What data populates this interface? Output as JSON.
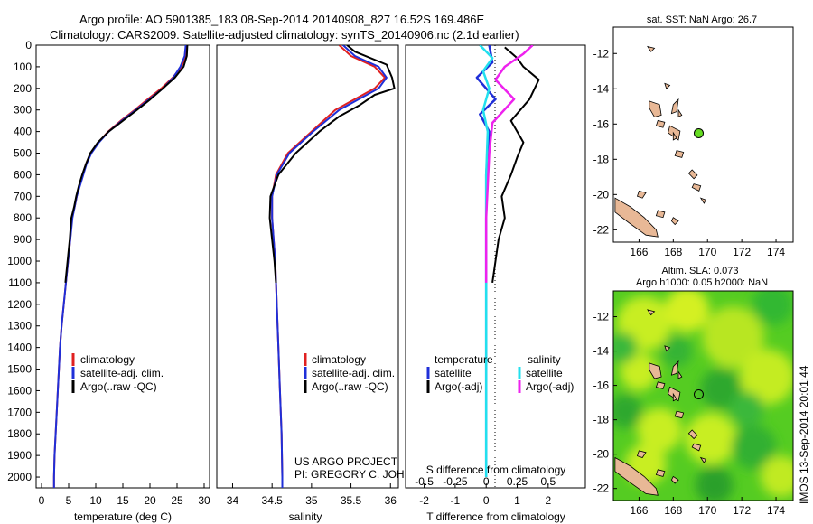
{
  "header": {
    "line1": "Argo profile: AO 5901385_183 08-Sep-2014 20140908_827 16.52S 169.486E",
    "line2": "Climatology: CARS2009. Satellite-adjusted climatology: synTS_20140906.nc (2.1d earlier)"
  },
  "credit": {
    "line1": "US ARGO PROJECT",
    "line2": "PI: GREGORY C. JOHNSON"
  },
  "timestamp": "IMOS 13-Sep-2014 20:01:44",
  "colors": {
    "climatology": "#e02020",
    "satellite": "#1f2fd8",
    "argo": "#000000",
    "sal_satellite": "#22e0ee",
    "sal_argo": "#ee22ee",
    "land": "#e8b896",
    "float": "#66dd22"
  },
  "chart_data": [
    {
      "type": "line",
      "id": "temperature",
      "xlabel": "temperature (deg C)",
      "xlim": [
        -1,
        31
      ],
      "ylim": [
        2050,
        0
      ],
      "xticks": [
        0,
        5,
        10,
        15,
        20,
        25,
        30
      ],
      "yticks": [
        0,
        100,
        200,
        300,
        400,
        500,
        600,
        700,
        800,
        900,
        1000,
        1100,
        1200,
        1300,
        1400,
        1500,
        1600,
        1700,
        1800,
        1900,
        2000
      ],
      "legend": [
        "climatology",
        "satellite-adj. clim.",
        "Argo(..raw -QC)"
      ],
      "series": [
        {
          "name": "climatology",
          "points": [
            [
              26.8,
              0
            ],
            [
              26.6,
              50
            ],
            [
              25.8,
              100
            ],
            [
              24.2,
              150
            ],
            [
              22.1,
              200
            ],
            [
              19.6,
              250
            ],
            [
              17.2,
              300
            ],
            [
              14.6,
              350
            ],
            [
              12.3,
              400
            ],
            [
              10.5,
              450
            ],
            [
              9.1,
              500
            ],
            [
              8.2,
              550
            ],
            [
              7.6,
              600
            ],
            [
              7.0,
              650
            ],
            [
              6.5,
              700
            ],
            [
              6.1,
              750
            ],
            [
              5.6,
              800
            ],
            [
              5.3,
              900
            ],
            [
              4.9,
              1000
            ],
            [
              4.5,
              1100
            ],
            [
              4.1,
              1200
            ],
            [
              3.7,
              1300
            ],
            [
              3.4,
              1400
            ],
            [
              3.2,
              1500
            ],
            [
              3.0,
              1600
            ],
            [
              2.8,
              1700
            ],
            [
              2.6,
              1800
            ],
            [
              2.4,
              1900
            ],
            [
              2.3,
              2000
            ],
            [
              2.3,
              2050
            ]
          ]
        },
        {
          "name": "satellite-adj. clim.",
          "points": [
            [
              26.6,
              0
            ],
            [
              26.4,
              50
            ],
            [
              25.6,
              100
            ],
            [
              24.3,
              150
            ],
            [
              22.4,
              200
            ],
            [
              19.9,
              250
            ],
            [
              17.4,
              300
            ],
            [
              14.8,
              350
            ],
            [
              12.4,
              400
            ],
            [
              10.6,
              450
            ],
            [
              9.2,
              500
            ],
            [
              8.3,
              550
            ],
            [
              7.7,
              600
            ],
            [
              7.1,
              650
            ],
            [
              6.5,
              700
            ],
            [
              6.1,
              750
            ],
            [
              5.7,
              800
            ],
            [
              5.3,
              900
            ],
            [
              4.9,
              1000
            ],
            [
              4.5,
              1100
            ],
            [
              4.1,
              1200
            ],
            [
              3.7,
              1300
            ],
            [
              3.4,
              1400
            ],
            [
              3.2,
              1500
            ],
            [
              3.0,
              1600
            ],
            [
              2.8,
              1700
            ],
            [
              2.6,
              1800
            ],
            [
              2.4,
              1900
            ],
            [
              2.3,
              2000
            ],
            [
              2.3,
              2050
            ]
          ]
        },
        {
          "name": "Argo(..raw -QC)",
          "points": [
            [
              26.9,
              0
            ],
            [
              26.8,
              50
            ],
            [
              26.2,
              100
            ],
            [
              24.6,
              150
            ],
            [
              22.4,
              200
            ],
            [
              20.1,
              250
            ],
            [
              17.6,
              300
            ],
            [
              15.0,
              350
            ],
            [
              12.4,
              400
            ],
            [
              10.4,
              450
            ],
            [
              9.0,
              500
            ],
            [
              8.2,
              550
            ],
            [
              7.5,
              600
            ],
            [
              6.9,
              650
            ],
            [
              6.4,
              700
            ],
            [
              6.0,
              750
            ],
            [
              5.5,
              800
            ],
            [
              5.2,
              900
            ],
            [
              4.8,
              1000
            ],
            [
              4.4,
              1100
            ]
          ]
        }
      ]
    },
    {
      "type": "line",
      "id": "salinity",
      "xlabel": "salinity",
      "xlim": [
        33.8,
        36.1
      ],
      "ylim": [
        2050,
        0
      ],
      "xticks": [
        34,
        34.5,
        35,
        35.5,
        36
      ],
      "legend": [
        "climatology",
        "satellite-adj. clim.",
        "Argo(..raw -QC)"
      ],
      "series": [
        {
          "name": "climatology",
          "points": [
            [
              35.35,
              0
            ],
            [
              35.5,
              50
            ],
            [
              35.8,
              100
            ],
            [
              35.93,
              150
            ],
            [
              35.8,
              200
            ],
            [
              35.55,
              250
            ],
            [
              35.3,
              300
            ],
            [
              35.0,
              400
            ],
            [
              34.7,
              500
            ],
            [
              34.55,
              600
            ],
            [
              34.5,
              700
            ],
            [
              34.5,
              800
            ],
            [
              34.52,
              900
            ],
            [
              34.54,
              1000
            ],
            [
              34.56,
              1200
            ],
            [
              34.58,
              1400
            ],
            [
              34.6,
              1600
            ],
            [
              34.62,
              1800
            ],
            [
              34.63,
              2000
            ],
            [
              34.63,
              2050
            ]
          ]
        },
        {
          "name": "satellite-adj. clim.",
          "points": [
            [
              35.4,
              0
            ],
            [
              35.55,
              50
            ],
            [
              35.85,
              100
            ],
            [
              35.95,
              150
            ],
            [
              35.85,
              200
            ],
            [
              35.6,
              250
            ],
            [
              35.35,
              300
            ],
            [
              35.02,
              400
            ],
            [
              34.72,
              500
            ],
            [
              34.56,
              600
            ],
            [
              34.5,
              700
            ],
            [
              34.5,
              800
            ],
            [
              34.52,
              900
            ],
            [
              34.54,
              1000
            ],
            [
              34.56,
              1200
            ],
            [
              34.58,
              1400
            ],
            [
              34.6,
              1600
            ],
            [
              34.62,
              1800
            ],
            [
              34.63,
              2000
            ],
            [
              34.63,
              2050
            ]
          ]
        },
        {
          "name": "Argo(..raw -QC)",
          "points": [
            [
              35.45,
              0
            ],
            [
              35.55,
              30
            ],
            [
              35.95,
              90
            ],
            [
              36.02,
              150
            ],
            [
              36.05,
              200
            ],
            [
              35.8,
              230
            ],
            [
              35.6,
              280
            ],
            [
              35.35,
              330
            ],
            [
              35.1,
              400
            ],
            [
              34.8,
              500
            ],
            [
              34.58,
              600
            ],
            [
              34.48,
              700
            ],
            [
              34.47,
              800
            ],
            [
              34.5,
              900
            ],
            [
              34.53,
              1000
            ],
            [
              34.55,
              1100
            ]
          ]
        }
      ]
    },
    {
      "type": "line",
      "id": "difference",
      "xlabel": "T difference from climatology",
      "xlabel_top": "S difference from climatology",
      "xlim": [
        -2.6,
        3.2
      ],
      "ylim": [
        2050,
        0
      ],
      "xticks": [
        -2,
        -1,
        0,
        1,
        2
      ],
      "xticks_s": [
        -0.5,
        -0.25,
        0,
        0.25,
        0.5
      ],
      "legend_titles": [
        "temperature",
        "salinity"
      ],
      "legend": [
        "satellite",
        "Argo(-adj)",
        "satellite",
        "Argo(-adj)"
      ],
      "series": [
        {
          "name": "satellite",
          "points": [
            [
              0.1,
              0
            ],
            [
              0.2,
              80
            ],
            [
              -0.3,
              150
            ],
            [
              0.3,
              250
            ],
            [
              -0.2,
              320
            ],
            [
              0.1,
              400
            ],
            [
              0.0,
              600
            ],
            [
              0.0,
              1000
            ],
            [
              0.0,
              2000
            ]
          ]
        },
        {
          "name": "Argo(-adj)",
          "points": [
            [
              0.6,
              10
            ],
            [
              1.0,
              60
            ],
            [
              1.2,
              100
            ],
            [
              1.7,
              160
            ],
            [
              1.4,
              250
            ],
            [
              0.8,
              350
            ],
            [
              1.2,
              450
            ],
            [
              1.0,
              520
            ],
            [
              0.8,
              600
            ],
            [
              0.5,
              700
            ],
            [
              0.6,
              800
            ],
            [
              0.4,
              900
            ],
            [
              0.3,
              1000
            ],
            [
              0.2,
              1100
            ]
          ]
        },
        {
          "name": "satellite",
          "points": [
            [
              -0.2,
              0
            ],
            [
              0.2,
              60
            ],
            [
              -0.1,
              120
            ],
            [
              0.1,
              200
            ],
            [
              -0.1,
              300
            ],
            [
              0.05,
              400
            ],
            [
              0.0,
              600
            ],
            [
              0.0,
              1000
            ],
            [
              0.0,
              1500
            ],
            [
              0.0,
              2000
            ]
          ]
        },
        {
          "name": "Argo(-adj)",
          "points": [
            [
              1.5,
              0
            ],
            [
              1.2,
              40
            ],
            [
              0.6,
              100
            ],
            [
              0.3,
              160
            ],
            [
              0.9,
              250
            ],
            [
              0.2,
              360
            ],
            [
              0.1,
              500
            ],
            [
              0.0,
              800
            ],
            [
              0.0,
              1100
            ]
          ]
        }
      ]
    },
    {
      "type": "scatter",
      "id": "map-sst",
      "title": "sat. SST: NaN Argo: 26.7",
      "xlim": [
        164.5,
        175
      ],
      "ylim": [
        -22.7,
        -10.5
      ],
      "xticks": [
        166,
        168,
        170,
        172,
        174
      ],
      "yticks": [
        -12,
        -14,
        -16,
        -18,
        -20,
        -22
      ],
      "point": [
        169.486,
        -16.52
      ]
    },
    {
      "type": "heatmap",
      "id": "map-sla",
      "title_line1": "Altim. SLA: 0.073",
      "title_line2": "Argo h1000: 0.05 h2000: NaN",
      "xlim": [
        164.5,
        175
      ],
      "ylim": [
        -22.7,
        -10.5
      ],
      "xticks": [
        166,
        168,
        170,
        172,
        174
      ],
      "yticks": [
        -12,
        -14,
        -16,
        -18,
        -20,
        -22
      ],
      "point": [
        169.486,
        -16.52
      ]
    }
  ]
}
